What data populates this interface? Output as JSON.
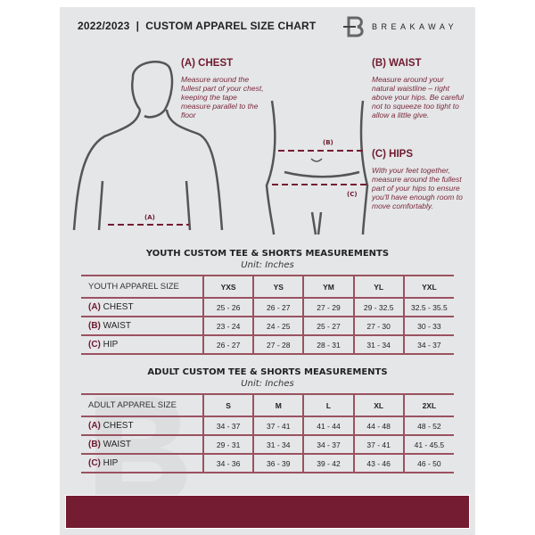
{
  "header": {
    "title": "2022/2023  |  CUSTOM APPAREL SIZE CHART",
    "brand": "BREAKAWAY",
    "logo_letter": "B"
  },
  "guide": {
    "chest": {
      "title": "(A) CHEST",
      "text": "Measure around the fullest part of your chest, keeping the tape measure parallel to the floor",
      "marker": "(A)"
    },
    "waist": {
      "title": "(B) WAIST",
      "text": "Measure around your natural waistline – right above your hips. Be careful not to squeeze too tight to allow a little give.",
      "marker": "(B)"
    },
    "hips": {
      "title": "(C) HIPS",
      "text": "With your feet together, measure around the fullest part of your hips to ensure you'll have enough room to move comfortably.",
      "marker": "(C)"
    }
  },
  "youth": {
    "title": "YOUTH CUSTOM TEE & SHORTS MEASUREMENTS",
    "unit": "Unit: Inches",
    "header": "YOUTH APPAREL SIZE",
    "sizes": [
      "YXS",
      "YS",
      "YM",
      "YL",
      "YXL"
    ],
    "rows": [
      {
        "code": "(A)",
        "name": "CHEST",
        "values": [
          "25 - 26",
          "26 - 27",
          "27 - 29",
          "29 - 32.5",
          "32.5 - 35.5"
        ]
      },
      {
        "code": "(B)",
        "name": "WAIST",
        "values": [
          "23 - 24",
          "24 - 25",
          "25 - 27",
          "27 - 30",
          "30 - 33"
        ]
      },
      {
        "code": "(C)",
        "name": "HIP",
        "values": [
          "26 - 27",
          "27 - 28",
          "28 - 31",
          "31 - 34",
          "34 - 37"
        ]
      }
    ]
  },
  "adult": {
    "title": "ADULT CUSTOM TEE & SHORTS MEASUREMENTS",
    "unit": "Unit: Inches",
    "header": "ADULT APPAREL SIZE",
    "sizes": [
      "S",
      "M",
      "L",
      "XL",
      "2XL"
    ],
    "rows": [
      {
        "code": "(A)",
        "name": "CHEST",
        "values": [
          "34 - 37",
          "37 - 41",
          "41 - 44",
          "44 - 48",
          "48 - 52"
        ]
      },
      {
        "code": "(B)",
        "name": "WAIST",
        "values": [
          "29 - 31",
          "31 - 34",
          "34 - 37",
          "37 - 41",
          "41 - 45.5"
        ]
      },
      {
        "code": "(C)",
        "name": "HIP",
        "values": [
          "34 - 36",
          "36 - 39",
          "39 - 42",
          "43 - 46",
          "46 - 50"
        ]
      }
    ]
  },
  "colors": {
    "accent": "#741c32",
    "background": "#e5e6e8"
  }
}
